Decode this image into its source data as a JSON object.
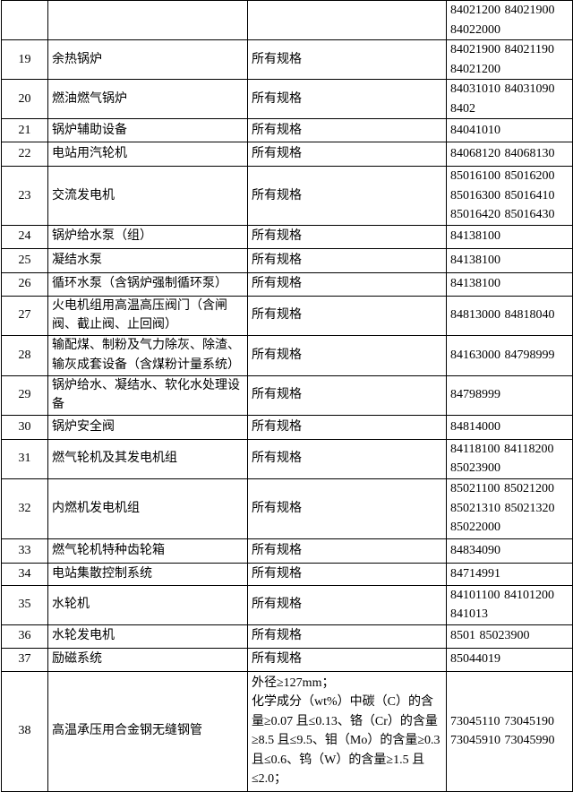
{
  "table": {
    "rows": [
      {
        "codes": "84021200 84021900 84022000"
      },
      {
        "number": "19",
        "name": "余热锅炉",
        "spec": "所有规格",
        "codes": "84021900 84021190 84021200"
      },
      {
        "number": "20",
        "name": "燃油燃气锅炉",
        "spec": "所有规格",
        "codes": "84031010 84031090 8402"
      },
      {
        "number": "21",
        "name": "锅炉辅助设备",
        "spec": "所有规格",
        "codes": "84041010"
      },
      {
        "number": "22",
        "name": "电站用汽轮机",
        "spec": "所有规格",
        "codes": "84068120 84068130"
      },
      {
        "number": "23",
        "name": "交流发电机",
        "spec": "所有规格",
        "codes": "85016100 85016200 85016300 85016410 85016420 85016430"
      },
      {
        "number": "24",
        "name": "锅炉给水泵（组）",
        "spec": "所有规格",
        "codes": "84138100"
      },
      {
        "number": "25",
        "name": "凝结水泵",
        "spec": "所有规格",
        "codes": "84138100"
      },
      {
        "number": "26",
        "name": "循环水泵（含锅炉强制循环泵）",
        "spec": "所有规格",
        "codes": "84138100"
      },
      {
        "number": "27",
        "name": "火电机组用高温高压阀门（含闸阀、截止阀、止回阀）",
        "spec": "所有规格",
        "codes": "84813000 84818040"
      },
      {
        "number": "28",
        "name": "输配煤、制粉及气力除灰、除渣、输灰成套设备（含煤粉计量系统）",
        "spec": "所有规格",
        "codes": "84163000 84798999"
      },
      {
        "number": "29",
        "name": "锅炉给水、凝结水、软化水处理设备",
        "spec": "所有规格",
        "codes": "84798999"
      },
      {
        "number": "30",
        "name": "锅炉安全阀",
        "spec": "所有规格",
        "codes": "84814000"
      },
      {
        "number": "31",
        "name": "燃气轮机及其发电机组",
        "spec": "所有规格",
        "codes": "84118100 84118200 85023900"
      },
      {
        "number": "32",
        "name": "内燃机发电机组",
        "spec": "所有规格",
        "codes": "85021100 85021200 85021310 85021320 85022000"
      },
      {
        "number": "33",
        "name": "燃气轮机特种齿轮箱",
        "spec": "所有规格",
        "codes": "84834090"
      },
      {
        "number": "34",
        "name": "电站集散控制系统",
        "spec": "所有规格",
        "codes": "84714991"
      },
      {
        "number": "35",
        "name": "水轮机",
        "spec": "所有规格",
        "codes": "84101100 84101200 841013"
      },
      {
        "number": "36",
        "name": "水轮发电机",
        "spec": "所有规格",
        "codes": "8501 85023900"
      },
      {
        "number": "37",
        "name": "励磁系统",
        "spec": "所有规格",
        "codes": "85044019"
      },
      {
        "number": "38",
        "name": "高温承压用合金钢无缝钢管",
        "spec": "外径≥127mm；\n化学成分（wt%）中碳（C）的含量≥0.07 且≤0.13、铬（Cr）的含量≥8.5 且≤9.5、钼（Mo）的含量≥0.3 且≤0.6、钨（W）的含量≥1.5 且≤2.0；",
        "codes": "73045110 73045190 73045910 73045990"
      }
    ]
  }
}
